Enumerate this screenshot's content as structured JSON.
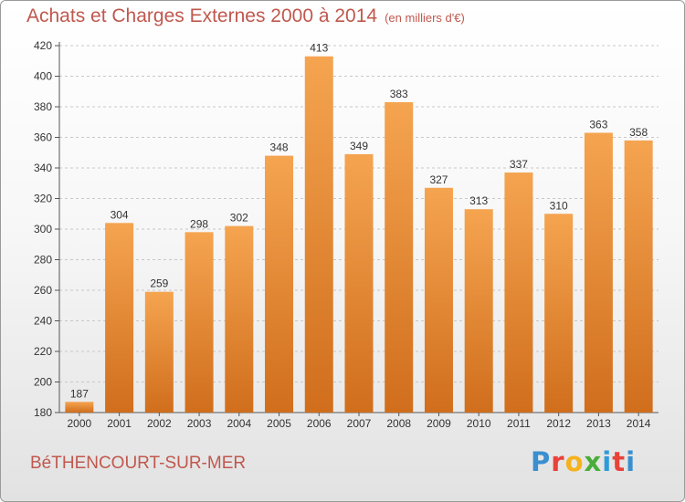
{
  "header": {
    "title": "Achats et Charges Externes 2000 à 2014",
    "unit": "(en milliers d'€)"
  },
  "footer": {
    "commune": "BéTHENCOURT-SUR-MER",
    "logo_letters": [
      "P",
      "r",
      "o",
      "x",
      "i",
      "t",
      "i"
    ],
    "logo_colors": [
      "#3a8fd0",
      "#e8423a",
      "#f5b21c",
      "#49ad3a",
      "#2d9bd8",
      "#e8423a",
      "#3a8fd0"
    ]
  },
  "chart_data": {
    "type": "bar",
    "categories": [
      "2000",
      "2001",
      "2002",
      "2003",
      "2004",
      "2005",
      "2006",
      "2007",
      "2008",
      "2009",
      "2010",
      "2011",
      "2012",
      "2013",
      "2014"
    ],
    "values": [
      187,
      304,
      259,
      298,
      302,
      348,
      413,
      349,
      383,
      327,
      313,
      337,
      310,
      363,
      358
    ],
    "title": "Achats et Charges Externes 2000 à 2014",
    "ylim": [
      180,
      420
    ],
    "yticks": [
      180,
      200,
      220,
      240,
      260,
      280,
      300,
      320,
      340,
      360,
      380,
      400,
      420
    ],
    "grid": true,
    "bar_color_top": "#f5a450",
    "bar_color_bottom": "#d06e1c"
  }
}
